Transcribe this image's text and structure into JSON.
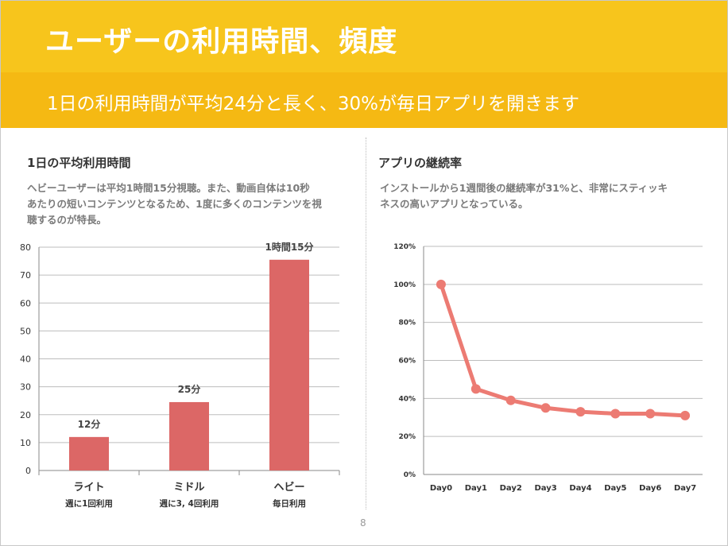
{
  "header": {
    "title": "ユーザーの利用時間、頻度",
    "subtitle": "1日の利用時間が平均24分と長く、30%が毎日アプリを開きます"
  },
  "left_section": {
    "heading": "1日の平均利用時間",
    "description_line1": "ヘビーユーザーは平均1時間15分視聴。また、動画自体は10秒",
    "description_line2": "あたりの短いコンテンツとなるため、1度に多くのコンテンツを視",
    "description_line3": "聴するのが特長。"
  },
  "right_section": {
    "heading": "アプリの継続率",
    "description_line1": "インストールから1週間後の継続率が31%と、非常にスティッキ",
    "description_line2": "ネスの高いアプリとなっている。"
  },
  "page_number": "8",
  "colors": {
    "title_bar": "#f7c51c",
    "subtitle_bar": "#f5b913",
    "bar_fill": "#dc6766",
    "line_color": "#ec7b73"
  },
  "chart_data": [
    {
      "type": "bar",
      "categories": [
        "ライト",
        "ミドル",
        "ヘビー"
      ],
      "sublabels": [
        "週に1回利用",
        "週に3, 4回利用",
        "毎日利用"
      ],
      "values": [
        12,
        24.5,
        75.5
      ],
      "data_labels": [
        "12分",
        "25分",
        "1時間15分"
      ],
      "ylim": [
        0,
        80
      ],
      "yticks": [
        0,
        10,
        20,
        30,
        40,
        50,
        60,
        70,
        80
      ],
      "ytick_labels": [
        "0",
        "10",
        "20",
        "30",
        "40",
        "50",
        "60",
        "70",
        "80"
      ],
      "grid": true
    },
    {
      "type": "line",
      "categories": [
        "Day0",
        "Day1",
        "Day2",
        "Day3",
        "Day4",
        "Day5",
        "Day6",
        "Day7"
      ],
      "values": [
        100,
        45,
        39,
        35,
        33,
        32,
        32,
        31
      ],
      "ylim": [
        0,
        120
      ],
      "yticks": [
        0,
        20,
        40,
        60,
        80,
        100,
        120
      ],
      "ytick_labels": [
        "0%",
        "20%",
        "40%",
        "60%",
        "80%",
        "100%",
        "120%"
      ],
      "grid": true
    }
  ]
}
